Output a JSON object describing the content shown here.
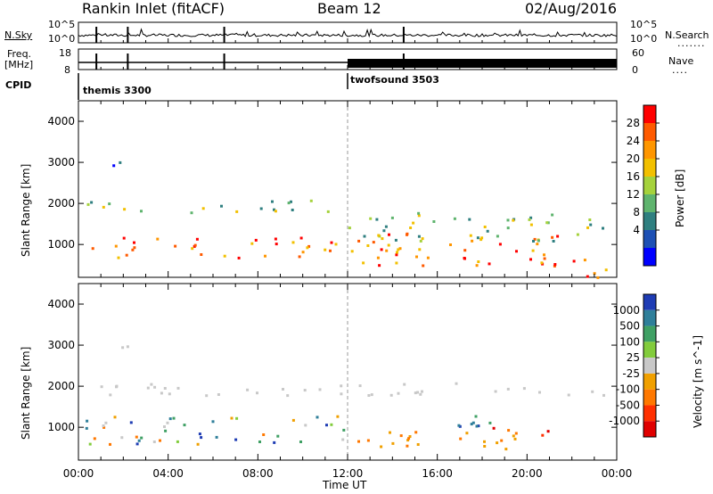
{
  "header": {
    "site": "Rankin Inlet (fitACF)",
    "beam": "Beam 12",
    "date": "02/Aug/2016"
  },
  "top_panels": {
    "nsky_label": "N.Sky",
    "nsearch_label": "N.Search",
    "nsky_ticks": [
      "10^5",
      "10^0"
    ],
    "nsearch_ticks": [
      "10^5",
      "10^0"
    ],
    "freq_label_1": "Freq.",
    "freq_label_2": "[MHz]",
    "freq_ticks": [
      "18",
      "8"
    ],
    "nave_label": "Nave",
    "nave_ticks": [
      "60",
      "0"
    ],
    "cpid_label": "CPID",
    "cpid_segments": [
      {
        "name": "themis 3300",
        "start_hour": 0
      },
      {
        "name": "twofsound 3503",
        "start_hour": 12
      }
    ]
  },
  "chart_data": [
    {
      "type": "heatmap",
      "title": "",
      "ylabel": "Slant Range [km]",
      "xlabel": "",
      "ylim": [
        200,
        4500
      ],
      "yticks": [
        "1000",
        "2000",
        "3000",
        "4000"
      ],
      "colorbar_label": "Power [dB]",
      "colorbar_ticks": [
        "28",
        "24",
        "20",
        "16",
        "12",
        "8",
        "4"
      ],
      "colors": [
        "#ff0000",
        "#ff5a00",
        "#ff9600",
        "#f2c000",
        "#a5d23c",
        "#5fb46e",
        "#2f7f80",
        "#1e50b4",
        "#0000ff"
      ],
      "regions": [
        {
          "t0": 0.3,
          "t1": 11.8,
          "r0": 700,
          "r1": 1200,
          "level": "high"
        },
        {
          "t0": 12.0,
          "t1": 21.5,
          "r0": 500,
          "r1": 1300,
          "level": "high"
        },
        {
          "t0": 20.0,
          "t1": 23.5,
          "r0": 200,
          "r1": 700,
          "level": "high"
        },
        {
          "t0": 0.3,
          "t1": 11.5,
          "r0": 1800,
          "r1": 2100,
          "level": "mid"
        },
        {
          "t0": 0.8,
          "t1": 2.2,
          "r0": 2900,
          "r1": 3100,
          "level": "low"
        },
        {
          "t0": 12.0,
          "t1": 23.5,
          "r0": 1100,
          "r1": 1800,
          "level": "mid"
        }
      ]
    },
    {
      "type": "heatmap",
      "title": "",
      "ylabel": "Slant Range [km]",
      "xlabel": "Time UT",
      "ylim": [
        200,
        4500
      ],
      "yticks": [
        "1000",
        "2000",
        "3000",
        "4000"
      ],
      "xticks": [
        "00:00",
        "04:00",
        "08:00",
        "12:00",
        "16:00",
        "20:00",
        "00:00"
      ],
      "colorbar_label": "Velocity [m s^-1]",
      "colorbar_ticks": [
        "1000",
        "500",
        "100",
        "25",
        "-25",
        "-100",
        "-500",
        "-1000"
      ],
      "colors": [
        "#1e3cb4",
        "#2f7f9a",
        "#3fa064",
        "#82cc3c",
        "#c8c8c8",
        "#f0a000",
        "#ff7800",
        "#ff3000",
        "#e00000"
      ],
      "regions": [
        {
          "t0": 0.3,
          "t1": 12.0,
          "r0": 600,
          "r1": 1300,
          "level": "mixed"
        },
        {
          "t0": 12.0,
          "t1": 19.5,
          "r0": 500,
          "r1": 1000,
          "level": "negative"
        },
        {
          "t0": 16.5,
          "t1": 20.0,
          "r0": 900,
          "r1": 1300,
          "level": "positive"
        },
        {
          "t0": 18.0,
          "t1": 21.0,
          "r0": 800,
          "r1": 1100,
          "level": "negative_strong"
        },
        {
          "t0": 0.3,
          "t1": 23.5,
          "r0": 1800,
          "r1": 2100,
          "level": "ground"
        },
        {
          "t0": 0.8,
          "t1": 2.2,
          "r0": 2900,
          "r1": 3100,
          "level": "ground"
        }
      ]
    }
  ]
}
